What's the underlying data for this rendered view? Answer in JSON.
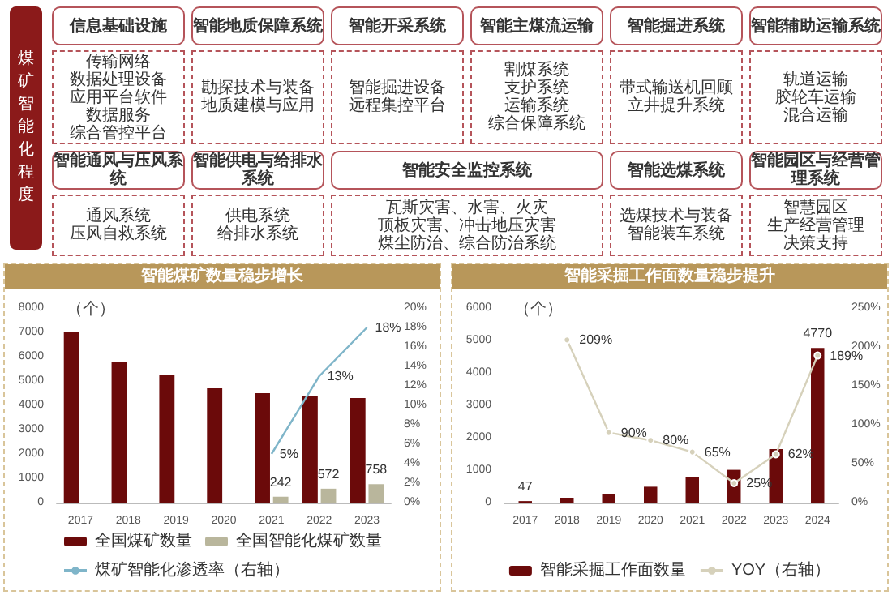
{
  "chart_data": [
    {
      "type": "other",
      "title": "煤矿智能化程度",
      "annotations": [
        "信息基础设施",
        "智能地质保障系统",
        "智能开采系统",
        "智能主煤流运输",
        "智能掘进系统",
        "智能辅助运输系统",
        "传输网络",
        "数据处理设备",
        "应用平台软件",
        "数据服务",
        "综合管控平台",
        "勘探技术与装备",
        "地质建模与应用",
        "智能掘进设备",
        "远程集控平台",
        "割煤系统",
        "支护系统",
        "运输系统",
        "综合保障系统",
        "带式输送机回顾",
        "立井提升系统",
        "轨道运输",
        "胶轮车运输",
        "混合运输",
        "智能通风与压风系统",
        "智能供电与给排水系统",
        "智能安全监控系统",
        "智能选煤系统",
        "智能园区与经营管理系统",
        "通风系统",
        "压风自救系统",
        "供电系统",
        "给排水系统",
        "瓦斯灾害、水害、火灾",
        "顶板灾害、冲击地压灾害",
        "煤尘防治、综合防治系统",
        "选煤技术与装备",
        "智能装车系统",
        "智慧园区",
        "生产经营管理",
        "决策支持"
      ]
    },
    {
      "type": "bar",
      "title": "智能煤矿数量稳步增长",
      "annotations": [
        "（个）"
      ],
      "legend": "bottom",
      "categories": [
        "2017",
        "2018",
        "2019",
        "2020",
        "2021",
        "2022",
        "2023"
      ],
      "ylim": [
        0,
        8000
      ],
      "yticks": [
        0,
        1000,
        2000,
        3000,
        4000,
        5000,
        6000,
        7000,
        8000
      ],
      "y2lim": [
        0,
        20
      ],
      "y2ticks": [
        {
          "value": 0,
          "label": "0%"
        },
        {
          "value": 2,
          "label": "2%"
        },
        {
          "value": 4,
          "label": "4%"
        },
        {
          "value": 6,
          "label": "6%"
        },
        {
          "value": 8,
          "label": "8%"
        },
        {
          "value": 10,
          "label": "10%"
        },
        {
          "value": 12,
          "label": "12%"
        },
        {
          "value": 14,
          "label": "14%"
        },
        {
          "value": 16,
          "label": "16%"
        },
        {
          "value": 18,
          "label": "18%"
        },
        {
          "value": 20,
          "label": "20%"
        }
      ],
      "series": [
        {
          "name": "全国煤矿数量",
          "color": "#6b0a0a",
          "values": [
            7000,
            5800,
            5270,
            4700,
            4500,
            4400,
            4300
          ]
        },
        {
          "name": "全国智能化煤矿数量",
          "color": "#b9b69c",
          "values": [
            null,
            null,
            null,
            null,
            242,
            572,
            758
          ],
          "value_labels": [
            null,
            null,
            null,
            null,
            "242",
            "572",
            "758"
          ]
        },
        {
          "name": "煤矿智能化渗透率（右轴）",
          "type": "line",
          "axis": "y2",
          "marker": "none",
          "color": "#7fb5c9",
          "values": [
            null,
            null,
            null,
            null,
            5,
            13,
            18
          ],
          "value_labels": [
            null,
            null,
            null,
            null,
            "5%",
            "13%",
            "18%"
          ]
        }
      ]
    },
    {
      "type": "bar",
      "title": "智能采掘工作面数量稳步提升",
      "annotations": [
        "（个）"
      ],
      "legend": "bottom",
      "categories": [
        "2017",
        "2018",
        "2019",
        "2020",
        "2021",
        "2022",
        "2023",
        "2024"
      ],
      "ylim": [
        0,
        6000
      ],
      "yticks": [
        0,
        1000,
        2000,
        3000,
        4000,
        5000,
        6000
      ],
      "y2lim": [
        0,
        250
      ],
      "y2ticks": [
        {
          "value": 0,
          "label": "0%"
        },
        {
          "value": 50,
          "label": "50%"
        },
        {
          "value": 100,
          "label": "100%"
        },
        {
          "value": 150,
          "label": "150%"
        },
        {
          "value": 200,
          "label": "200%"
        },
        {
          "value": 250,
          "label": "250%"
        }
      ],
      "series": [
        {
          "name": "智能采掘工作面数量",
          "color": "#6b0a0a",
          "values": [
            47,
            150,
            270,
            490,
            800,
            1010,
            1650,
            4770
          ],
          "value_labels": [
            "47",
            null,
            null,
            null,
            null,
            null,
            null,
            "4770"
          ]
        },
        {
          "name": "YOY（右轴）",
          "type": "line",
          "axis": "y2",
          "marker": "circle",
          "color": "#d6d1bb",
          "values": [
            null,
            209,
            90,
            80,
            65,
            25,
            62,
            189
          ],
          "value_labels": [
            null,
            "209%",
            "90%",
            "80%",
            "65%",
            "25%",
            "62%",
            "189%"
          ]
        }
      ]
    }
  ]
}
